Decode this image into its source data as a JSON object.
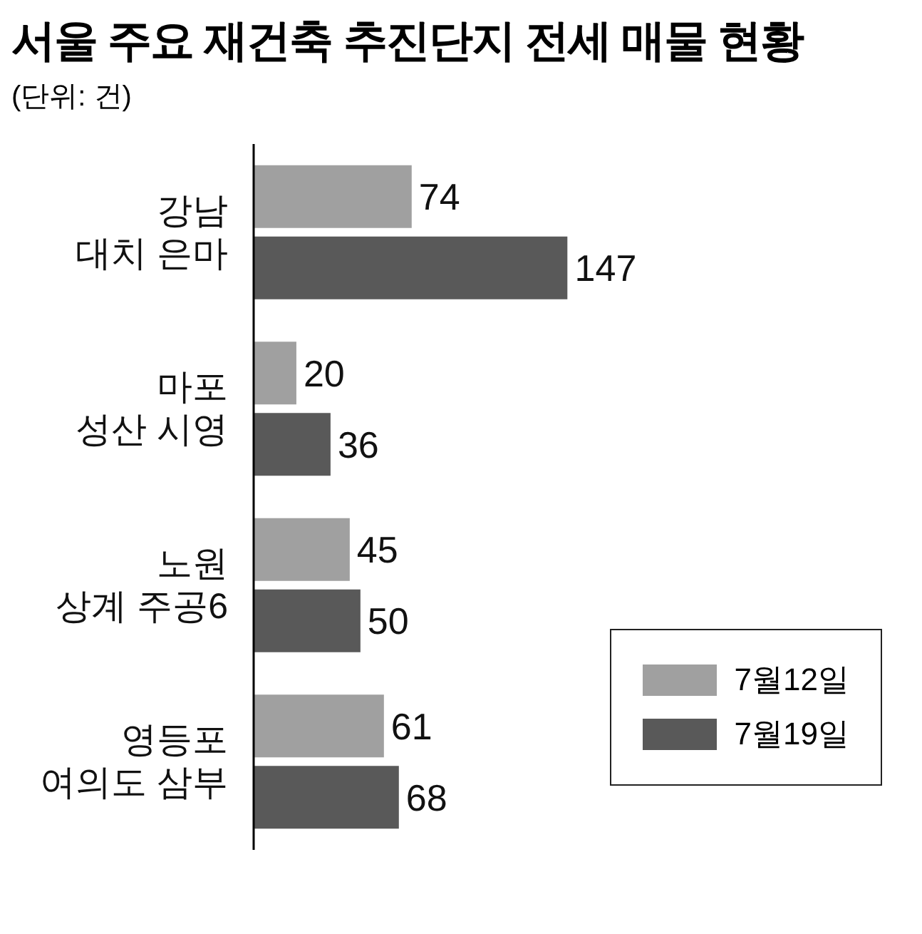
{
  "chart_data": {
    "type": "bar",
    "orientation": "horizontal",
    "title": "서울 주요 재건축 추진단지 전세 매물 현황",
    "subtitle": "(단위: 건)",
    "categories": [
      "강남\n대치 은마",
      "마포\n성산 시영",
      "노원\n상계 주공6",
      "영등포\n여의도 삼부"
    ],
    "series": [
      {
        "name": "7월12일",
        "color": "#a0a0a0",
        "values": [
          74,
          20,
          45,
          61
        ]
      },
      {
        "name": "7월19일",
        "color": "#595959",
        "values": [
          147,
          36,
          50,
          68
        ]
      }
    ],
    "data_labels": true,
    "legend": "right",
    "grid": false
  }
}
